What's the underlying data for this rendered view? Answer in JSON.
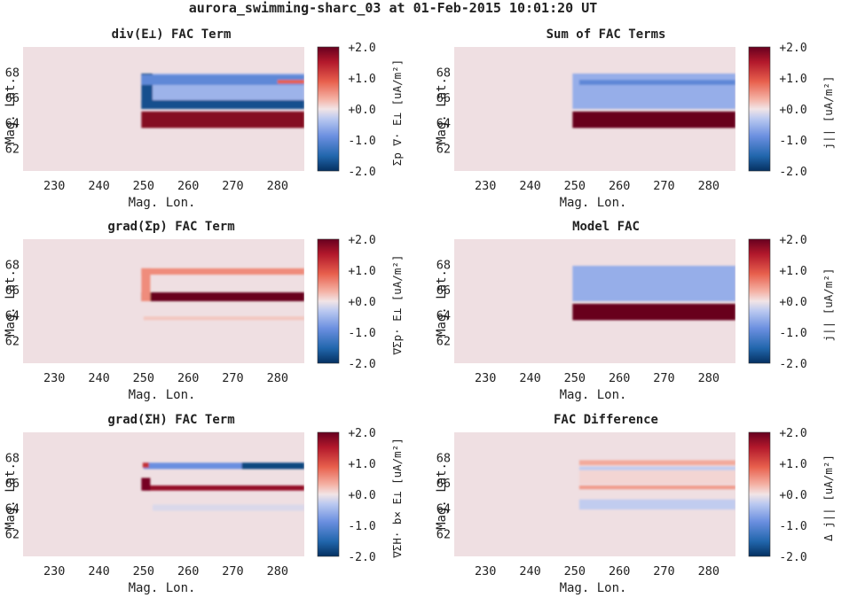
{
  "figure_title": "aurora_swimming-sharc_03 at 01-Feb-2015 10:01:20 UT",
  "colorbar_ticks": [
    "+2.0",
    "+1.0",
    "+0.0",
    "-1.0",
    "-2.0"
  ],
  "colormap": {
    "low": "#053061",
    "mid": "#f2e4e6",
    "high": "#67001f",
    "background": "#efdfe2"
  },
  "chart_data": [
    {
      "type": "heatmap",
      "title": "div(E⊥) FAC Term",
      "xlabel": "Mag. Lon.",
      "ylabel": "Mag. Lat.",
      "colorbar_label": "Σp ∇· E⊥ [uA/m²]",
      "x_ticks": [
        230,
        240,
        250,
        260,
        270,
        280
      ],
      "y_ticks": [
        62,
        64,
        66,
        68
      ],
      "xlim": [
        223,
        286
      ],
      "ylim": [
        60.2,
        70
      ],
      "clim": [
        -2,
        2
      ],
      "features": [
        {
          "lon": [
            249.5,
            286
          ],
          "lat": [
            63.6,
            64.9
          ],
          "value": 1.8
        },
        {
          "lon": [
            249.5,
            286
          ],
          "lat": [
            65.1,
            67.9
          ],
          "value": -0.55
        },
        {
          "lon": [
            249.5,
            286
          ],
          "lat": [
            65.1,
            65.8
          ],
          "value": -1.7
        },
        {
          "lon": [
            249.5,
            252
          ],
          "lat": [
            65.1,
            67.9
          ],
          "value": -1.7
        },
        {
          "lon": [
            249.5,
            286
          ],
          "lat": [
            67.0,
            67.8
          ],
          "value": -1.0
        },
        {
          "lon": [
            280,
            286
          ],
          "lat": [
            67.1,
            67.4
          ],
          "value": 0.9
        }
      ]
    },
    {
      "type": "heatmap",
      "title": "Sum of FAC Terms",
      "xlabel": "Mag. Lon.",
      "ylabel": "Mag. Lat.",
      "colorbar_label": "j|| [uA/m²]",
      "x_ticks": [
        230,
        240,
        250,
        260,
        270,
        280
      ],
      "y_ticks": [
        62,
        64,
        66,
        68
      ],
      "xlim": [
        223,
        286
      ],
      "ylim": [
        60.2,
        70
      ],
      "clim": [
        -2,
        2
      ],
      "features": [
        {
          "lon": [
            249.5,
            286
          ],
          "lat": [
            63.6,
            64.9
          ],
          "value": 2.0
        },
        {
          "lon": [
            249.5,
            286
          ],
          "lat": [
            65.1,
            67.9
          ],
          "value": -0.6
        },
        {
          "lon": [
            251,
            286
          ],
          "lat": [
            67.0,
            67.4
          ],
          "value": -1.0
        }
      ]
    },
    {
      "type": "heatmap",
      "title": "grad(Σp) FAC Term",
      "xlabel": "Mag. Lon.",
      "ylabel": "Mag. Lat.",
      "colorbar_label": "∇Σp· E⊥ [uA/m²]",
      "x_ticks": [
        230,
        240,
        250,
        260,
        270,
        280
      ],
      "y_ticks": [
        62,
        64,
        66,
        68
      ],
      "xlim": [
        223,
        286
      ],
      "ylim": [
        60.2,
        70
      ],
      "clim": [
        -2,
        2
      ],
      "features": [
        {
          "lon": [
            249.5,
            286
          ],
          "lat": [
            65.1,
            65.8
          ],
          "value": 2.0
        },
        {
          "lon": [
            249.5,
            286
          ],
          "lat": [
            67.2,
            67.7
          ],
          "value": 0.6
        },
        {
          "lon": [
            249.5,
            251.5
          ],
          "lat": [
            65.1,
            67.7
          ],
          "value": 0.6
        },
        {
          "lon": [
            250,
            286
          ],
          "lat": [
            63.6,
            63.9
          ],
          "value": 0.2
        }
      ]
    },
    {
      "type": "heatmap",
      "title": "Model FAC",
      "xlabel": "Mag. Lon.",
      "ylabel": "Mag. Lat.",
      "colorbar_label": "j|| [uA/m²]",
      "x_ticks": [
        230,
        240,
        250,
        260,
        270,
        280
      ],
      "y_ticks": [
        62,
        64,
        66,
        68
      ],
      "xlim": [
        223,
        286
      ],
      "ylim": [
        60.2,
        70
      ],
      "clim": [
        -2,
        2
      ],
      "features": [
        {
          "lon": [
            249.5,
            286
          ],
          "lat": [
            63.6,
            64.9
          ],
          "value": 2.0
        },
        {
          "lon": [
            249.5,
            286
          ],
          "lat": [
            65.1,
            67.9
          ],
          "value": -0.6
        }
      ]
    },
    {
      "type": "heatmap",
      "title": "grad(ΣH) FAC Term",
      "xlabel": "Mag. Lon.",
      "ylabel": "Mag. Lat.",
      "colorbar_label": "∇ΣH· b× E⊥ [uA/m²]",
      "x_ticks": [
        230,
        240,
        250,
        260,
        270,
        280
      ],
      "y_ticks": [
        62,
        64,
        66,
        68
      ],
      "xlim": [
        223,
        286
      ],
      "ylim": [
        60.2,
        70
      ],
      "clim": [
        -2,
        2
      ],
      "features": [
        {
          "lon": [
            250,
            286
          ],
          "lat": [
            65.4,
            65.8
          ],
          "value": 1.7
        },
        {
          "lon": [
            250,
            286
          ],
          "lat": [
            67.1,
            67.6
          ],
          "value": -0.9
        },
        {
          "lon": [
            272,
            286
          ],
          "lat": [
            67.1,
            67.6
          ],
          "value": -1.8
        },
        {
          "lon": [
            249.5,
            251.5
          ],
          "lat": [
            65.4,
            66.4
          ],
          "value": 1.9
        },
        {
          "lon": [
            249.8,
            251.2
          ],
          "lat": [
            67.2,
            67.6
          ],
          "value": 1.3
        },
        {
          "lon": [
            252,
            286
          ],
          "lat": [
            63.8,
            64.3
          ],
          "value": -0.15
        }
      ]
    },
    {
      "type": "heatmap",
      "title": "FAC Difference",
      "xlabel": "Mag. Lon.",
      "ylabel": "Mag. Lat.",
      "colorbar_label": "Δ j|| [uA/m²]",
      "x_ticks": [
        230,
        240,
        250,
        260,
        270,
        280
      ],
      "y_ticks": [
        62,
        64,
        66,
        68
      ],
      "xlim": [
        223,
        286
      ],
      "ylim": [
        60.2,
        70
      ],
      "clim": [
        -2,
        2
      ],
      "features": [
        {
          "lon": [
            251,
            286
          ],
          "lat": [
            65.5,
            65.8
          ],
          "value": 0.5
        },
        {
          "lon": [
            251,
            286
          ],
          "lat": [
            67.4,
            67.8
          ],
          "value": 0.4
        },
        {
          "lon": [
            251,
            286
          ],
          "lat": [
            67.0,
            67.3
          ],
          "value": -0.3
        },
        {
          "lon": [
            251,
            286
          ],
          "lat": [
            63.9,
            64.7
          ],
          "value": -0.3
        },
        {
          "lon": [
            251,
            286
          ],
          "lat": [
            65.9,
            67.0
          ],
          "value": 0.1
        }
      ]
    }
  ]
}
